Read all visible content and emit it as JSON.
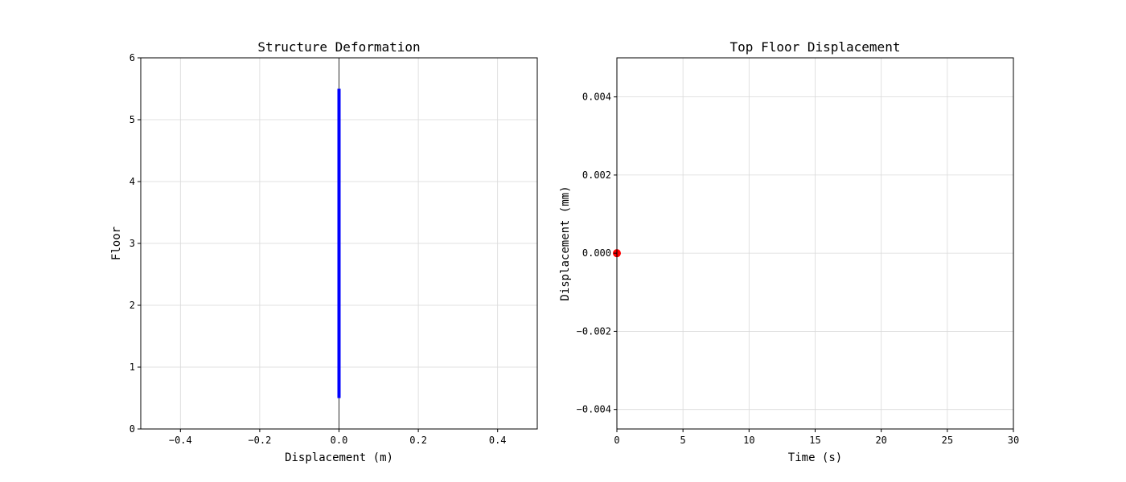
{
  "chart_data": [
    {
      "type": "line",
      "title": "Structure Deformation",
      "xlabel": "Displacement (m)",
      "ylabel": "Floor",
      "xlim": [
        -0.5,
        0.5
      ],
      "ylim": [
        0,
        6
      ],
      "xticks": [
        -0.4,
        -0.2,
        0.0,
        0.2,
        0.4
      ],
      "xtick_labels": [
        "−0.4",
        "−0.2",
        "0.0",
        "0.2",
        "0.4"
      ],
      "yticks": [
        0,
        1,
        2,
        3,
        4,
        5,
        6
      ],
      "ytick_labels": [
        "0",
        "1",
        "2",
        "3",
        "4",
        "5",
        "6"
      ],
      "grid": true,
      "series": [
        {
          "x": [
            0,
            0
          ],
          "y": [
            0.5,
            5.5
          ],
          "color": "#0000ff"
        }
      ],
      "reference_lines": [
        {
          "orientation": "vertical",
          "x": 0,
          "color": "#000000"
        }
      ]
    },
    {
      "type": "scatter",
      "title": "Top Floor Displacement",
      "xlabel": "Time (s)",
      "ylabel": "Displacement (mm)",
      "xlim": [
        0,
        30
      ],
      "ylim": [
        -0.0045,
        0.005
      ],
      "xticks": [
        0,
        5,
        10,
        15,
        20,
        25,
        30
      ],
      "xtick_labels": [
        "0",
        "5",
        "10",
        "15",
        "20",
        "25",
        "30"
      ],
      "yticks": [
        -0.004,
        -0.002,
        0.0,
        0.002,
        0.004
      ],
      "ytick_labels": [
        "−0.004",
        "−0.002",
        "0.000",
        "0.002",
        "0.004"
      ],
      "grid": true,
      "series": [
        {
          "x": [
            0
          ],
          "y": [
            0
          ],
          "color": "#ff0000"
        }
      ]
    }
  ]
}
